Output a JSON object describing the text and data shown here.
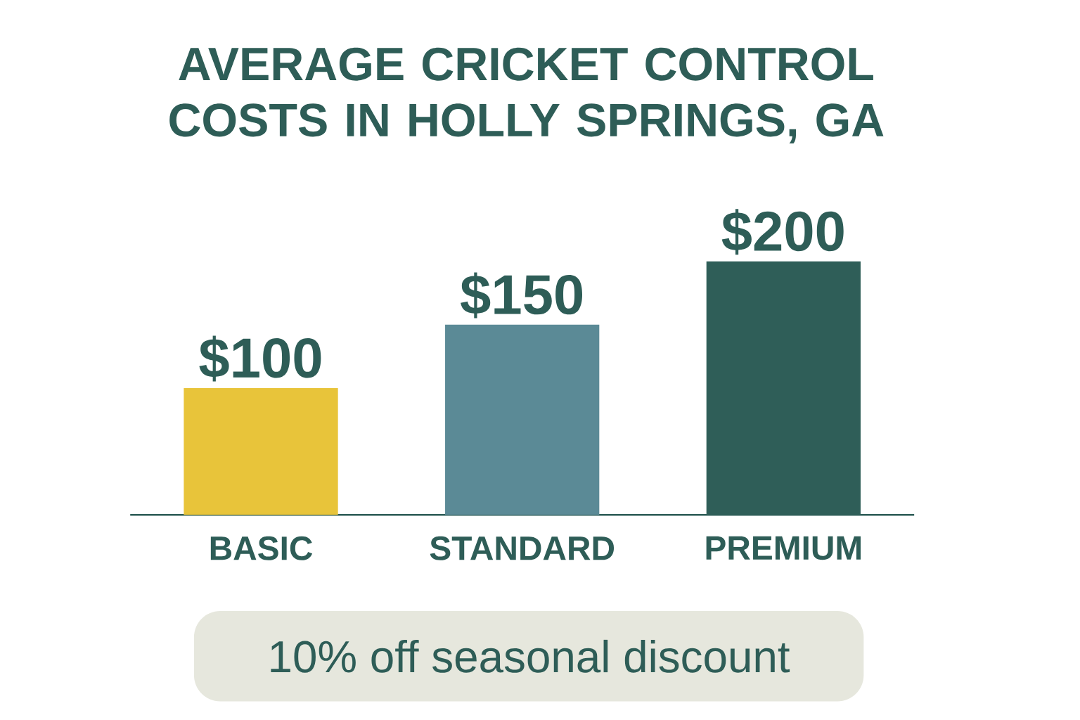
{
  "chart_data": {
    "type": "bar",
    "title": "AVERAGE CRICKET CONTROL COSTS IN HOLLY SPRINGS, GA",
    "categories": [
      "BASIC",
      "STANDARD",
      "PREMIUM"
    ],
    "values": [
      100,
      150,
      200
    ],
    "value_labels": [
      "$100",
      "$150",
      "$200"
    ],
    "colors": [
      "#e8c43a",
      "#5b8a96",
      "#2f5e58"
    ],
    "annotations": [
      "10% off seasonal discount"
    ]
  }
}
